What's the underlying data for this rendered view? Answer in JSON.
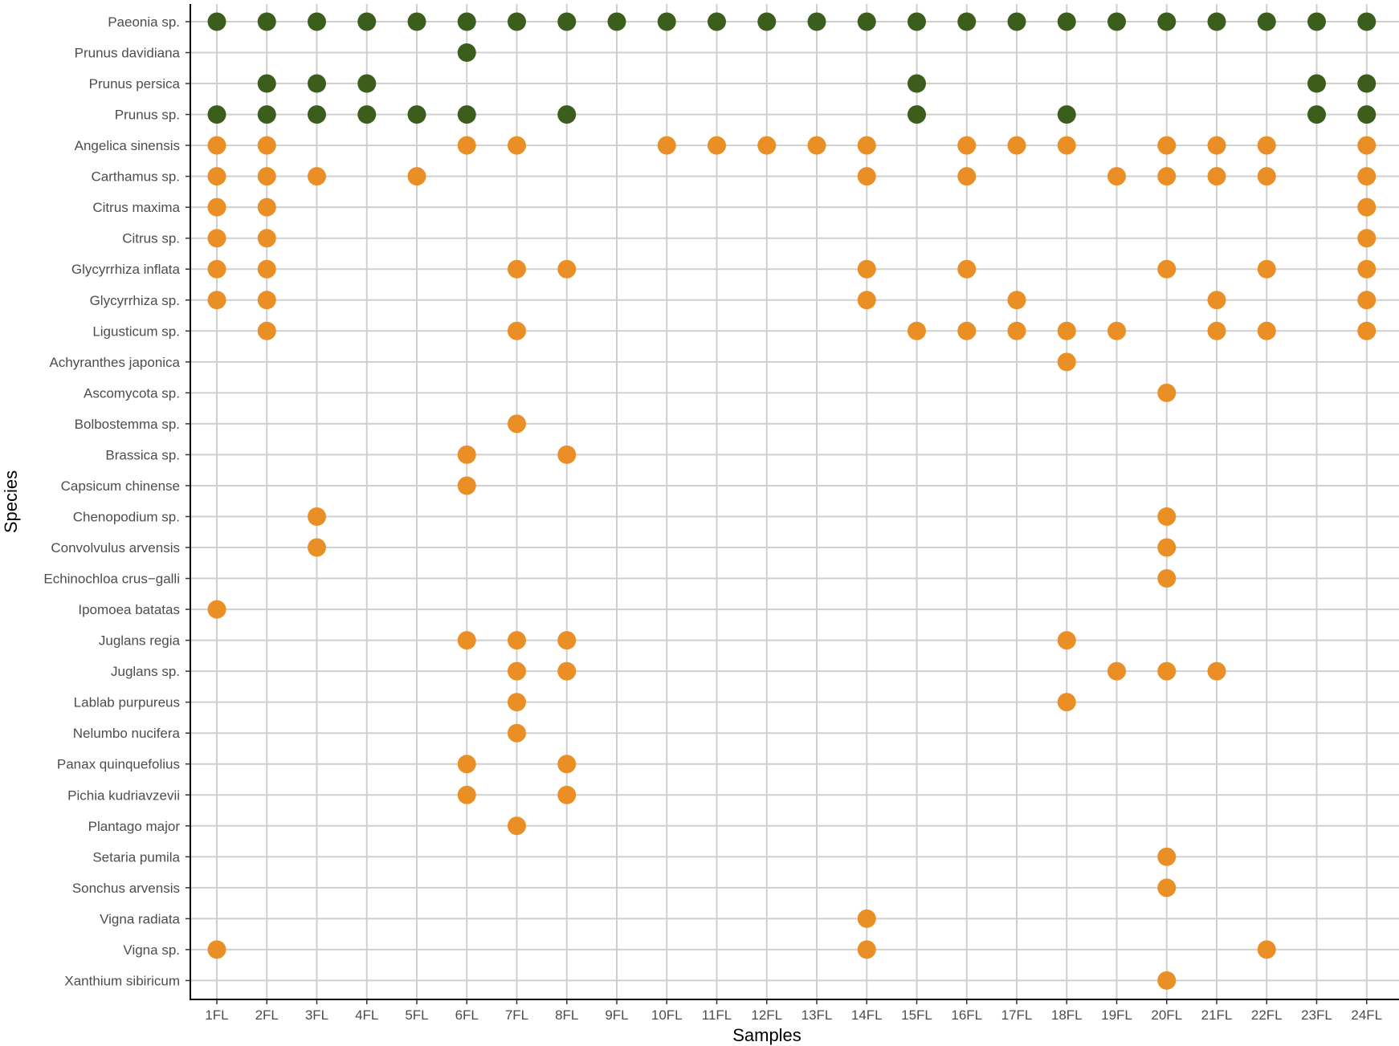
{
  "chart_data": {
    "type": "scatter",
    "xlabel": "Samples",
    "ylabel": "Species",
    "samples": [
      "1FL",
      "2FL",
      "3FL",
      "4FL",
      "5FL",
      "6FL",
      "7FL",
      "8FL",
      "9FL",
      "10FL",
      "11FL",
      "12FL",
      "13FL",
      "14FL",
      "15FL",
      "16FL",
      "17FL",
      "18FL",
      "19FL",
      "20FL",
      "21FL",
      "22FL",
      "23FL",
      "24FL"
    ],
    "species": [
      {
        "name": "Paeonia sp.",
        "group": "green",
        "present": [
          "1FL",
          "2FL",
          "3FL",
          "4FL",
          "5FL",
          "6FL",
          "7FL",
          "8FL",
          "9FL",
          "10FL",
          "11FL",
          "12FL",
          "13FL",
          "14FL",
          "15FL",
          "16FL",
          "17FL",
          "18FL",
          "19FL",
          "20FL",
          "21FL",
          "22FL",
          "23FL",
          "24FL"
        ]
      },
      {
        "name": "Prunus davidiana",
        "group": "green",
        "present": [
          "6FL"
        ]
      },
      {
        "name": "Prunus persica",
        "group": "green",
        "present": [
          "2FL",
          "3FL",
          "4FL",
          "15FL",
          "23FL",
          "24FL"
        ]
      },
      {
        "name": "Prunus sp.",
        "group": "green",
        "present": [
          "1FL",
          "2FL",
          "3FL",
          "4FL",
          "5FL",
          "6FL",
          "8FL",
          "15FL",
          "18FL",
          "23FL",
          "24FL"
        ]
      },
      {
        "name": "Angelica sinensis",
        "group": "orange",
        "present": [
          "1FL",
          "2FL",
          "6FL",
          "7FL",
          "10FL",
          "11FL",
          "12FL",
          "13FL",
          "14FL",
          "16FL",
          "17FL",
          "18FL",
          "20FL",
          "21FL",
          "22FL",
          "24FL"
        ]
      },
      {
        "name": "Carthamus sp.",
        "group": "orange",
        "present": [
          "1FL",
          "2FL",
          "3FL",
          "5FL",
          "14FL",
          "16FL",
          "19FL",
          "20FL",
          "21FL",
          "22FL",
          "24FL"
        ]
      },
      {
        "name": "Citrus maxima",
        "group": "orange",
        "present": [
          "1FL",
          "2FL",
          "24FL"
        ]
      },
      {
        "name": "Citrus sp.",
        "group": "orange",
        "present": [
          "1FL",
          "2FL",
          "24FL"
        ]
      },
      {
        "name": "Glycyrrhiza inflata",
        "group": "orange",
        "present": [
          "1FL",
          "2FL",
          "7FL",
          "8FL",
          "14FL",
          "16FL",
          "20FL",
          "22FL",
          "24FL"
        ]
      },
      {
        "name": "Glycyrrhiza sp.",
        "group": "orange",
        "present": [
          "1FL",
          "2FL",
          "14FL",
          "17FL",
          "21FL",
          "24FL"
        ]
      },
      {
        "name": "Ligusticum sp.",
        "group": "orange",
        "present": [
          "2FL",
          "7FL",
          "15FL",
          "16FL",
          "17FL",
          "18FL",
          "19FL",
          "21FL",
          "22FL",
          "24FL"
        ]
      },
      {
        "name": "Achyranthes japonica",
        "group": "orange",
        "present": [
          "18FL"
        ]
      },
      {
        "name": "Ascomycota sp.",
        "group": "orange",
        "present": [
          "20FL"
        ]
      },
      {
        "name": "Bolbostemma sp.",
        "group": "orange",
        "present": [
          "7FL"
        ]
      },
      {
        "name": "Brassica sp.",
        "group": "orange",
        "present": [
          "6FL",
          "8FL"
        ]
      },
      {
        "name": "Capsicum chinense",
        "group": "orange",
        "present": [
          "6FL"
        ]
      },
      {
        "name": "Chenopodium sp.",
        "group": "orange",
        "present": [
          "3FL",
          "20FL"
        ]
      },
      {
        "name": "Convolvulus arvensis",
        "group": "orange",
        "present": [
          "3FL",
          "20FL"
        ]
      },
      {
        "name": "Echinochloa crus−galli",
        "group": "orange",
        "present": [
          "20FL"
        ]
      },
      {
        "name": "Ipomoea batatas",
        "group": "orange",
        "present": [
          "1FL"
        ]
      },
      {
        "name": "Juglans regia",
        "group": "orange",
        "present": [
          "6FL",
          "7FL",
          "8FL",
          "18FL"
        ]
      },
      {
        "name": "Juglans sp.",
        "group": "orange",
        "present": [
          "7FL",
          "8FL",
          "19FL",
          "20FL",
          "21FL"
        ]
      },
      {
        "name": "Lablab purpureus",
        "group": "orange",
        "present": [
          "7FL",
          "18FL"
        ]
      },
      {
        "name": "Nelumbo nucifera",
        "group": "orange",
        "present": [
          "7FL"
        ]
      },
      {
        "name": "Panax quinquefolius",
        "group": "orange",
        "present": [
          "6FL",
          "8FL"
        ]
      },
      {
        "name": "Pichia kudriavzevii",
        "group": "orange",
        "present": [
          "6FL",
          "8FL"
        ]
      },
      {
        "name": "Plantago major",
        "group": "orange",
        "present": [
          "7FL"
        ]
      },
      {
        "name": "Setaria pumila",
        "group": "orange",
        "present": [
          "20FL"
        ]
      },
      {
        "name": "Sonchus arvensis",
        "group": "orange",
        "present": [
          "20FL"
        ]
      },
      {
        "name": "Vigna radiata",
        "group": "orange",
        "present": [
          "14FL"
        ]
      },
      {
        "name": "Vigna sp.",
        "group": "orange",
        "present": [
          "1FL",
          "14FL",
          "22FL"
        ]
      },
      {
        "name": "Xanthium sibiricum",
        "group": "orange",
        "present": [
          "20FL"
        ]
      }
    ],
    "colors": {
      "green": "#3b5e1c",
      "orange": "#ea8f25",
      "grid": "#cfcfcf"
    },
    "grid": true,
    "legend": "none"
  }
}
